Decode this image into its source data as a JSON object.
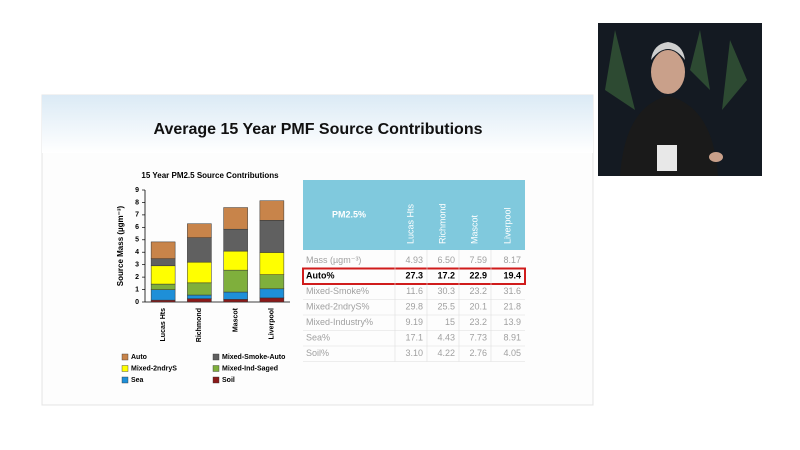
{
  "slide": {
    "title": "Average 15 Year PMF Source Contributions"
  },
  "chart_data": {
    "type": "stacked-bar",
    "title": "15 Year PM2.5 Source Contributions",
    "ylabel": "Source  Mass (µgm⁻³)",
    "categories": [
      "Lucas Hts",
      "Richmond",
      "Mascot",
      "Liverpool"
    ],
    "series": [
      {
        "name": "Auto",
        "color": "#c8844a",
        "values": [
          1.35,
          1.12,
          1.74,
          1.58
        ]
      },
      {
        "name": "Mixed-Smoke-Auto",
        "color": "#606060",
        "values": [
          0.57,
          1.97,
          1.76,
          2.58
        ]
      },
      {
        "name": "Mixed-2ndryS",
        "color": "#ffff00",
        "values": [
          1.47,
          1.66,
          1.53,
          1.78
        ]
      },
      {
        "name": "Mixed-Ind-Saged",
        "color": "#7faf3c",
        "values": [
          0.45,
          0.98,
          1.76,
          1.14
        ]
      },
      {
        "name": "Sea",
        "color": "#1e8fd8",
        "values": [
          0.84,
          0.29,
          0.59,
          0.73
        ]
      },
      {
        "name": "Soil",
        "color": "#8b1a1a",
        "values": [
          0.15,
          0.27,
          0.21,
          0.33
        ]
      }
    ],
    "ylim": [
      0,
      9
    ],
    "yticks": [
      0,
      1,
      2,
      3,
      4,
      5,
      6,
      7,
      8,
      9
    ]
  },
  "table": {
    "header": [
      "PM2.5%",
      "Lucas Hts",
      "Richmond",
      "Mascot",
      "Liverpool"
    ],
    "rows": [
      [
        "Mass (µgm⁻³)",
        "4.93",
        "6.50",
        "7.59",
        "8.17"
      ],
      [
        "Auto%",
        "27.3",
        "17.2",
        "22.9",
        "19.4"
      ],
      [
        "Mixed-Smoke%",
        "11.6",
        "30.3",
        "23.2",
        "31.6"
      ],
      [
        "Mixed-2ndryS%",
        "29.8",
        "25.5",
        "20.1",
        "21.8"
      ],
      [
        "Mixed-Industry%",
        "9.19",
        "15",
        "23.2",
        "13.9"
      ],
      [
        "Sea%",
        "17.1",
        "4.43",
        "7.73",
        "8.91"
      ],
      [
        "Soil%",
        "3.10",
        "4.22",
        "2.76",
        "4.05"
      ]
    ]
  }
}
